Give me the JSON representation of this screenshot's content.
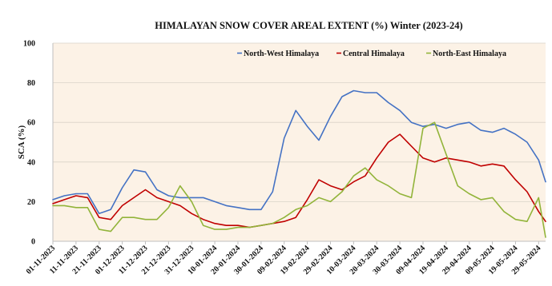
{
  "chart_data": {
    "type": "line",
    "title": "HIMALAYAN SNOW COVER AREAL EXTENT (%) Winter (2023-24)",
    "xlabel": "",
    "ylabel": "SCA (%)",
    "ylim": [
      0,
      100
    ],
    "yticks": [
      0,
      20,
      40,
      60,
      80,
      100
    ],
    "grid": true,
    "legend_position": "top-right",
    "plot_background": "#fcf2e6",
    "x_ticks": [
      "01-11-2023",
      "11-11-2023",
      "21-11-2023",
      "01-12-2023",
      "11-12-2023",
      "21-12-2023",
      "31-12-2023",
      "10-01-2024",
      "20-01-2024",
      "30-01-2024",
      "09-02-2024",
      "19-02-2024",
      "29-02-2024",
      "10-03-2024",
      "20-03-2024",
      "30-03-2024",
      "09-04-2024",
      "19-04-2024",
      "29-04-2024",
      "09-05-2024",
      "19-05-2024",
      "29-05-2024"
    ],
    "x": [
      "2023-11-01",
      "2023-11-06",
      "2023-11-11",
      "2023-11-16",
      "2023-11-21",
      "2023-11-26",
      "2023-12-01",
      "2023-12-06",
      "2023-12-11",
      "2023-12-16",
      "2023-12-21",
      "2023-12-26",
      "2023-12-31",
      "2024-01-05",
      "2024-01-10",
      "2024-01-15",
      "2024-01-20",
      "2024-01-25",
      "2024-01-30",
      "2024-02-04",
      "2024-02-09",
      "2024-02-14",
      "2024-02-19",
      "2024-02-24",
      "2024-02-29",
      "2024-03-05",
      "2024-03-10",
      "2024-03-15",
      "2024-03-20",
      "2024-03-25",
      "2024-03-30",
      "2024-04-04",
      "2024-04-09",
      "2024-04-14",
      "2024-04-19",
      "2024-04-24",
      "2024-04-29",
      "2024-05-04",
      "2024-05-09",
      "2024-05-14",
      "2024-05-19",
      "2024-05-24",
      "2024-05-29",
      "2024-06-01"
    ],
    "series": [
      {
        "name": "North-West Himalaya",
        "color": "#4472c4",
        "values": [
          21,
          23,
          24,
          24,
          14,
          16,
          27,
          36,
          35,
          26,
          23,
          22,
          22,
          22,
          20,
          18,
          17,
          16,
          16,
          25,
          52,
          66,
          58,
          51,
          63,
          73,
          76,
          75,
          75,
          70,
          66,
          60,
          58,
          59,
          57,
          59,
          60,
          56,
          55,
          57,
          54,
          50,
          41,
          30
        ]
      },
      {
        "name": "Central Himalaya",
        "color": "#c00000",
        "values": [
          19,
          21,
          23,
          22,
          12,
          11,
          18,
          22,
          26,
          22,
          20,
          18,
          14,
          11,
          9,
          8,
          8,
          7,
          8,
          9,
          10,
          12,
          21,
          31,
          28,
          26,
          30,
          33,
          42,
          50,
          54,
          48,
          42,
          40,
          42,
          41,
          40,
          38,
          39,
          38,
          31,
          25,
          15,
          10
        ]
      },
      {
        "name": "North-East Himalaya",
        "color": "#92b43a",
        "values": [
          18,
          18,
          17,
          17,
          6,
          5,
          12,
          12,
          11,
          11,
          17,
          28,
          20,
          8,
          6,
          6,
          7,
          7,
          8,
          9,
          12,
          16,
          18,
          22,
          20,
          25,
          33,
          37,
          31,
          28,
          24,
          22,
          57,
          60,
          44,
          28,
          24,
          21,
          22,
          15,
          11,
          10,
          22,
          2
        ]
      }
    ]
  }
}
